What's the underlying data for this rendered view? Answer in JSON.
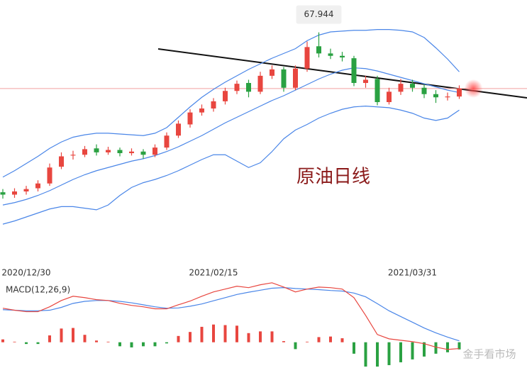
{
  "chart_data": {
    "type": "candlestick",
    "categories": [
      null,
      null,
      "2020/12/30",
      null,
      null,
      null,
      null,
      null,
      null,
      null,
      null,
      null,
      null,
      null,
      null,
      null,
      null,
      null,
      "2021/02/15",
      null,
      null,
      null,
      null,
      null,
      null,
      null,
      null,
      null,
      null,
      null,
      null,
      null,
      null,
      null,
      null,
      "2021/03/31",
      null,
      null,
      null,
      null
    ],
    "open": [
      47.9,
      47.6,
      48.0,
      48.4,
      49.0,
      51.1,
      52.5,
      52.6,
      53.4,
      52.9,
      53.2,
      52.8,
      53.0,
      52.6,
      53.5,
      55.0,
      56.4,
      57.9,
      58.4,
      59.3,
      60.6,
      61.6,
      60.5,
      62.5,
      63.3,
      61.0,
      63.4,
      66.2,
      65.3,
      65.0,
      64.7,
      61.6,
      62.1,
      59.2,
      60.5,
      61.5,
      61.0,
      60.2,
      59.8,
      59.9
    ],
    "high": [
      48.3,
      48.4,
      48.7,
      49.4,
      51.5,
      52.9,
      53.1,
      53.7,
      53.9,
      53.6,
      53.5,
      53.4,
      53.3,
      53.9,
      55.4,
      56.9,
      58.3,
      58.9,
      59.7,
      61.0,
      61.9,
      62.0,
      63.0,
      63.8,
      63.6,
      63.8,
      66.8,
      67.944,
      65.9,
      65.5,
      65.0,
      62.5,
      62.5,
      61.0,
      62.1,
      62.0,
      61.4,
      60.7,
      60.4,
      61.3
    ],
    "low": [
      47.1,
      47.2,
      47.6,
      48.0,
      48.7,
      50.8,
      52.0,
      52.3,
      52.5,
      52.6,
      52.4,
      52.5,
      52.1,
      52.3,
      53.2,
      54.7,
      56.0,
      57.5,
      58.0,
      58.9,
      60.2,
      59.8,
      60.2,
      62.1,
      60.5,
      60.7,
      63.0,
      64.8,
      64.6,
      64.3,
      61.2,
      61.0,
      58.8,
      58.9,
      60.1,
      60.5,
      59.7,
      59.1,
      59.4,
      59.6
    ],
    "close": [
      47.6,
      48.0,
      48.3,
      49.0,
      51.0,
      52.4,
      52.6,
      53.3,
      52.9,
      53.2,
      52.8,
      53.0,
      52.6,
      53.5,
      55.0,
      56.5,
      57.9,
      58.4,
      59.3,
      60.6,
      61.5,
      60.5,
      62.5,
      63.3,
      61.0,
      63.4,
      66.1,
      65.3,
      65.0,
      64.8,
      61.6,
      62.0,
      59.2,
      60.5,
      61.5,
      61.0,
      60.2,
      59.8,
      59.9,
      60.9
    ],
    "up_color": "#e8463f",
    "down_color": "#2aa142",
    "ylim": [
      40,
      72
    ],
    "bollinger": {
      "color": "#4a86e8",
      "upper": [
        49.8,
        50.6,
        51.5,
        52.4,
        53.4,
        54.2,
        54.8,
        55.1,
        55.3,
        55.3,
        55.2,
        55.1,
        55.0,
        55.3,
        56.0,
        57.3,
        58.6,
        59.8,
        60.8,
        61.7,
        62.5,
        63.3,
        64.0,
        64.7,
        65.3,
        65.9,
        66.9,
        67.6,
        68.0,
        68.1,
        68.2,
        68.2,
        68.3,
        68.3,
        68.2,
        68.0,
        67.3,
        66.0,
        64.6,
        63.0
      ],
      "middle": [
        46.3,
        46.6,
        47.0,
        47.5,
        48.1,
        48.8,
        49.5,
        50.1,
        50.6,
        51.0,
        51.4,
        51.8,
        52.1,
        52.5,
        53.0,
        53.6,
        54.3,
        55.0,
        55.8,
        56.6,
        57.3,
        58.0,
        58.7,
        59.4,
        60.0,
        60.7,
        61.4,
        62.1,
        62.7,
        63.2,
        63.5,
        63.4,
        63.1,
        62.7,
        62.3,
        61.9,
        61.5,
        61.1,
        60.7,
        60.4
      ],
      "lower": [
        43.9,
        44.3,
        44.8,
        45.3,
        45.8,
        46.1,
        46.1,
        45.9,
        45.7,
        46.3,
        47.5,
        48.5,
        49.1,
        49.5,
        50.0,
        50.6,
        51.3,
        52.0,
        52.6,
        52.6,
        51.8,
        51.0,
        51.6,
        53.0,
        54.6,
        55.7,
        56.4,
        57.2,
        57.8,
        58.3,
        58.6,
        58.7,
        58.6,
        58.5,
        58.2,
        57.8,
        57.2,
        56.9,
        57.2,
        58.2
      ]
    },
    "annotation": "原油日线",
    "watermark": "金手看市场",
    "macd": {
      "label": "MACD(12,26,9)",
      "ylim": [
        -0.9,
        2.1
      ],
      "dif": {
        "color": "#e8463f",
        "values": [
          1.19,
          1.12,
          1.07,
          1.07,
          1.24,
          1.46,
          1.61,
          1.56,
          1.49,
          1.46,
          1.36,
          1.29,
          1.24,
          1.17,
          1.17,
          1.31,
          1.44,
          1.61,
          1.76,
          1.86,
          1.96,
          1.91,
          2.01,
          2.08,
          1.93,
          1.76,
          1.86,
          1.93,
          1.91,
          1.86,
          1.56,
          0.94,
          0.27,
          0.12,
          0.07,
          0.02,
          -0.05,
          -0.17,
          -0.25,
          -0.22
        ]
      },
      "dea": {
        "color": "#4a86e8",
        "values": [
          1.14,
          1.12,
          1.1,
          1.1,
          1.12,
          1.22,
          1.36,
          1.43,
          1.46,
          1.46,
          1.43,
          1.38,
          1.31,
          1.24,
          1.19,
          1.2,
          1.26,
          1.34,
          1.45,
          1.56,
          1.67,
          1.75,
          1.82,
          1.89,
          1.91,
          1.88,
          1.86,
          1.84,
          1.81,
          1.79,
          1.72,
          1.59,
          1.35,
          1.1,
          0.9,
          0.7,
          0.5,
          0.33,
          0.18,
          0.05
        ]
      },
      "histogram": [
        0.1,
        0.02,
        -0.06,
        -0.06,
        0.24,
        0.48,
        0.5,
        0.26,
        0.06,
        0.02,
        -0.14,
        -0.18,
        -0.14,
        -0.14,
        -0.04,
        0.22,
        0.36,
        0.54,
        0.62,
        0.6,
        0.58,
        0.32,
        0.38,
        0.38,
        0.04,
        -0.24,
        0.02,
        0.18,
        0.2,
        0.14,
        -0.4,
        -0.85,
        -0.85,
        -0.8,
        -0.7,
        -0.6,
        -0.5,
        -0.4,
        -0.35,
        -0.25
      ]
    }
  }
}
